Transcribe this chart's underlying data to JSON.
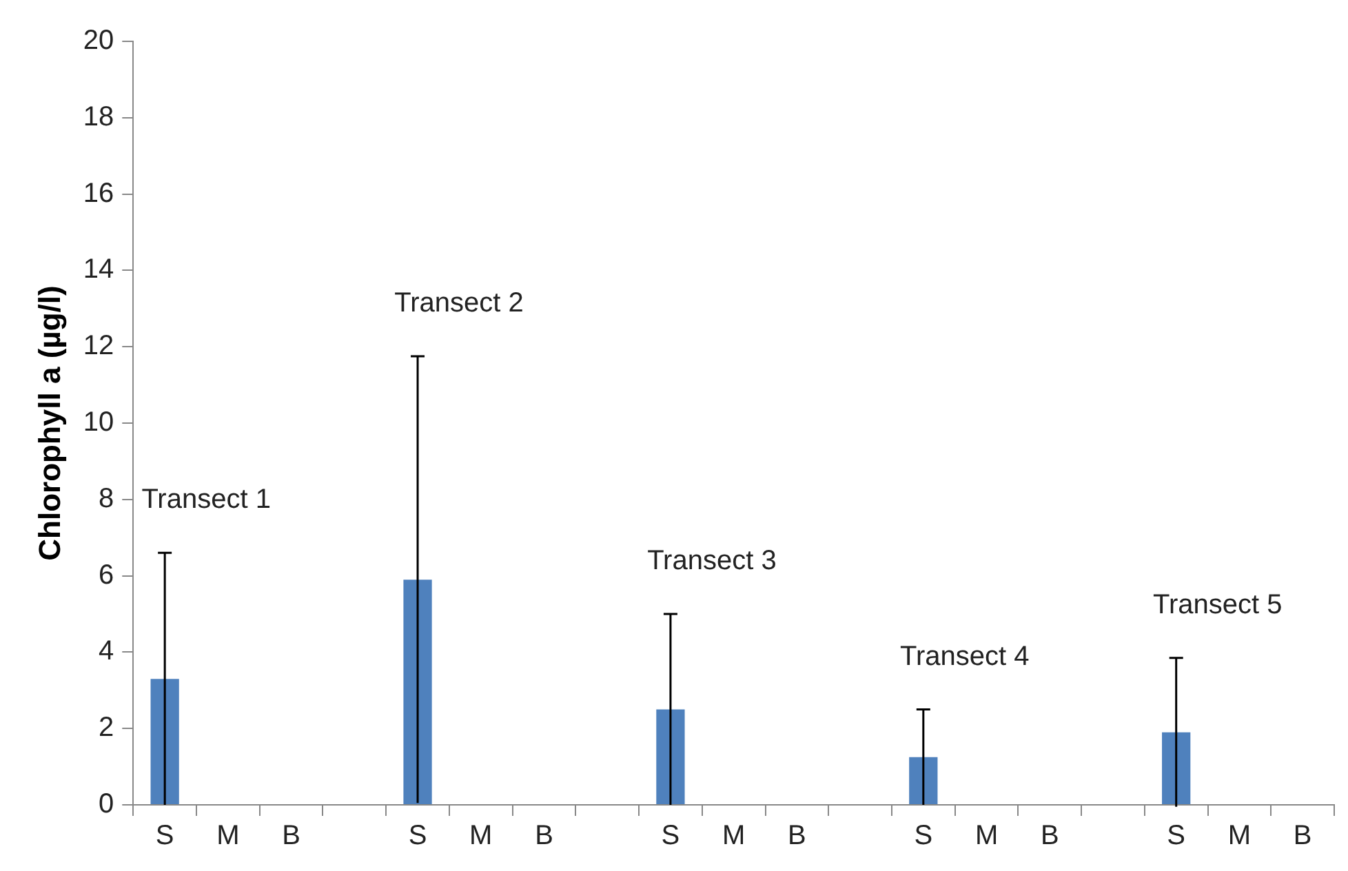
{
  "chart_data": {
    "type": "bar",
    "ylabel": "Chlorophyll a (µg/l)",
    "categories": [
      "S",
      "M",
      "B",
      null,
      "S",
      "M",
      "B",
      null,
      "S",
      "M",
      "B",
      null,
      "S",
      "M",
      "B",
      null,
      "S",
      "M",
      "B"
    ],
    "values": [
      3.3,
      null,
      null,
      null,
      5.9,
      null,
      null,
      null,
      2.5,
      null,
      null,
      null,
      1.25,
      null,
      null,
      null,
      1.9,
      null,
      null
    ],
    "errors": [
      3.3,
      null,
      null,
      null,
      5.85,
      null,
      null,
      null,
      2.5,
      null,
      null,
      null,
      1.25,
      null,
      null,
      null,
      1.95,
      null,
      null
    ],
    "color": "#4f81bd",
    "ylim": [
      0,
      20
    ],
    "yticks": [
      0,
      2,
      4,
      6,
      8,
      10,
      12,
      14,
      16,
      18,
      20
    ],
    "grid": false,
    "legend": false,
    "annotations": [
      "Transect 1",
      "Transect 2",
      "Transect 3",
      "Transect 4",
      "Transect 5"
    ]
  }
}
